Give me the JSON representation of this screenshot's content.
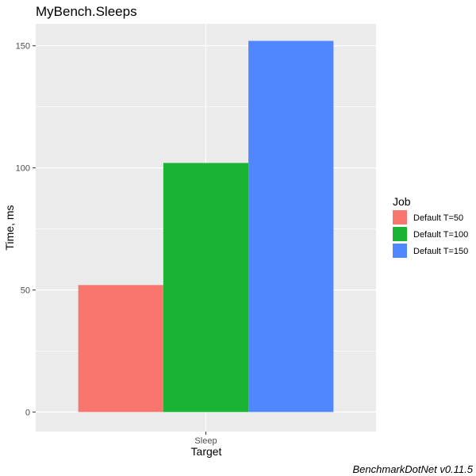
{
  "chart_data": {
    "type": "bar",
    "title": "MyBench.Sleeps",
    "xlabel": "Target",
    "ylabel": "Time, ms",
    "categories": [
      "Sleep"
    ],
    "series": [
      {
        "name": "Default T=50",
        "values": [
          52
        ],
        "color": "#F8766D"
      },
      {
        "name": "Default T=100",
        "values": [
          102
        ],
        "color": "#1BB334"
      },
      {
        "name": "Default T=150",
        "values": [
          152
        ],
        "color": "#5087FF"
      }
    ],
    "ylim": [
      -8,
      159
    ],
    "yticks": [
      0,
      50,
      100,
      150
    ],
    "grid": true,
    "legend": {
      "title": "Job",
      "position": "right"
    },
    "caption": "BenchmarkDotNet v0.11.5"
  }
}
